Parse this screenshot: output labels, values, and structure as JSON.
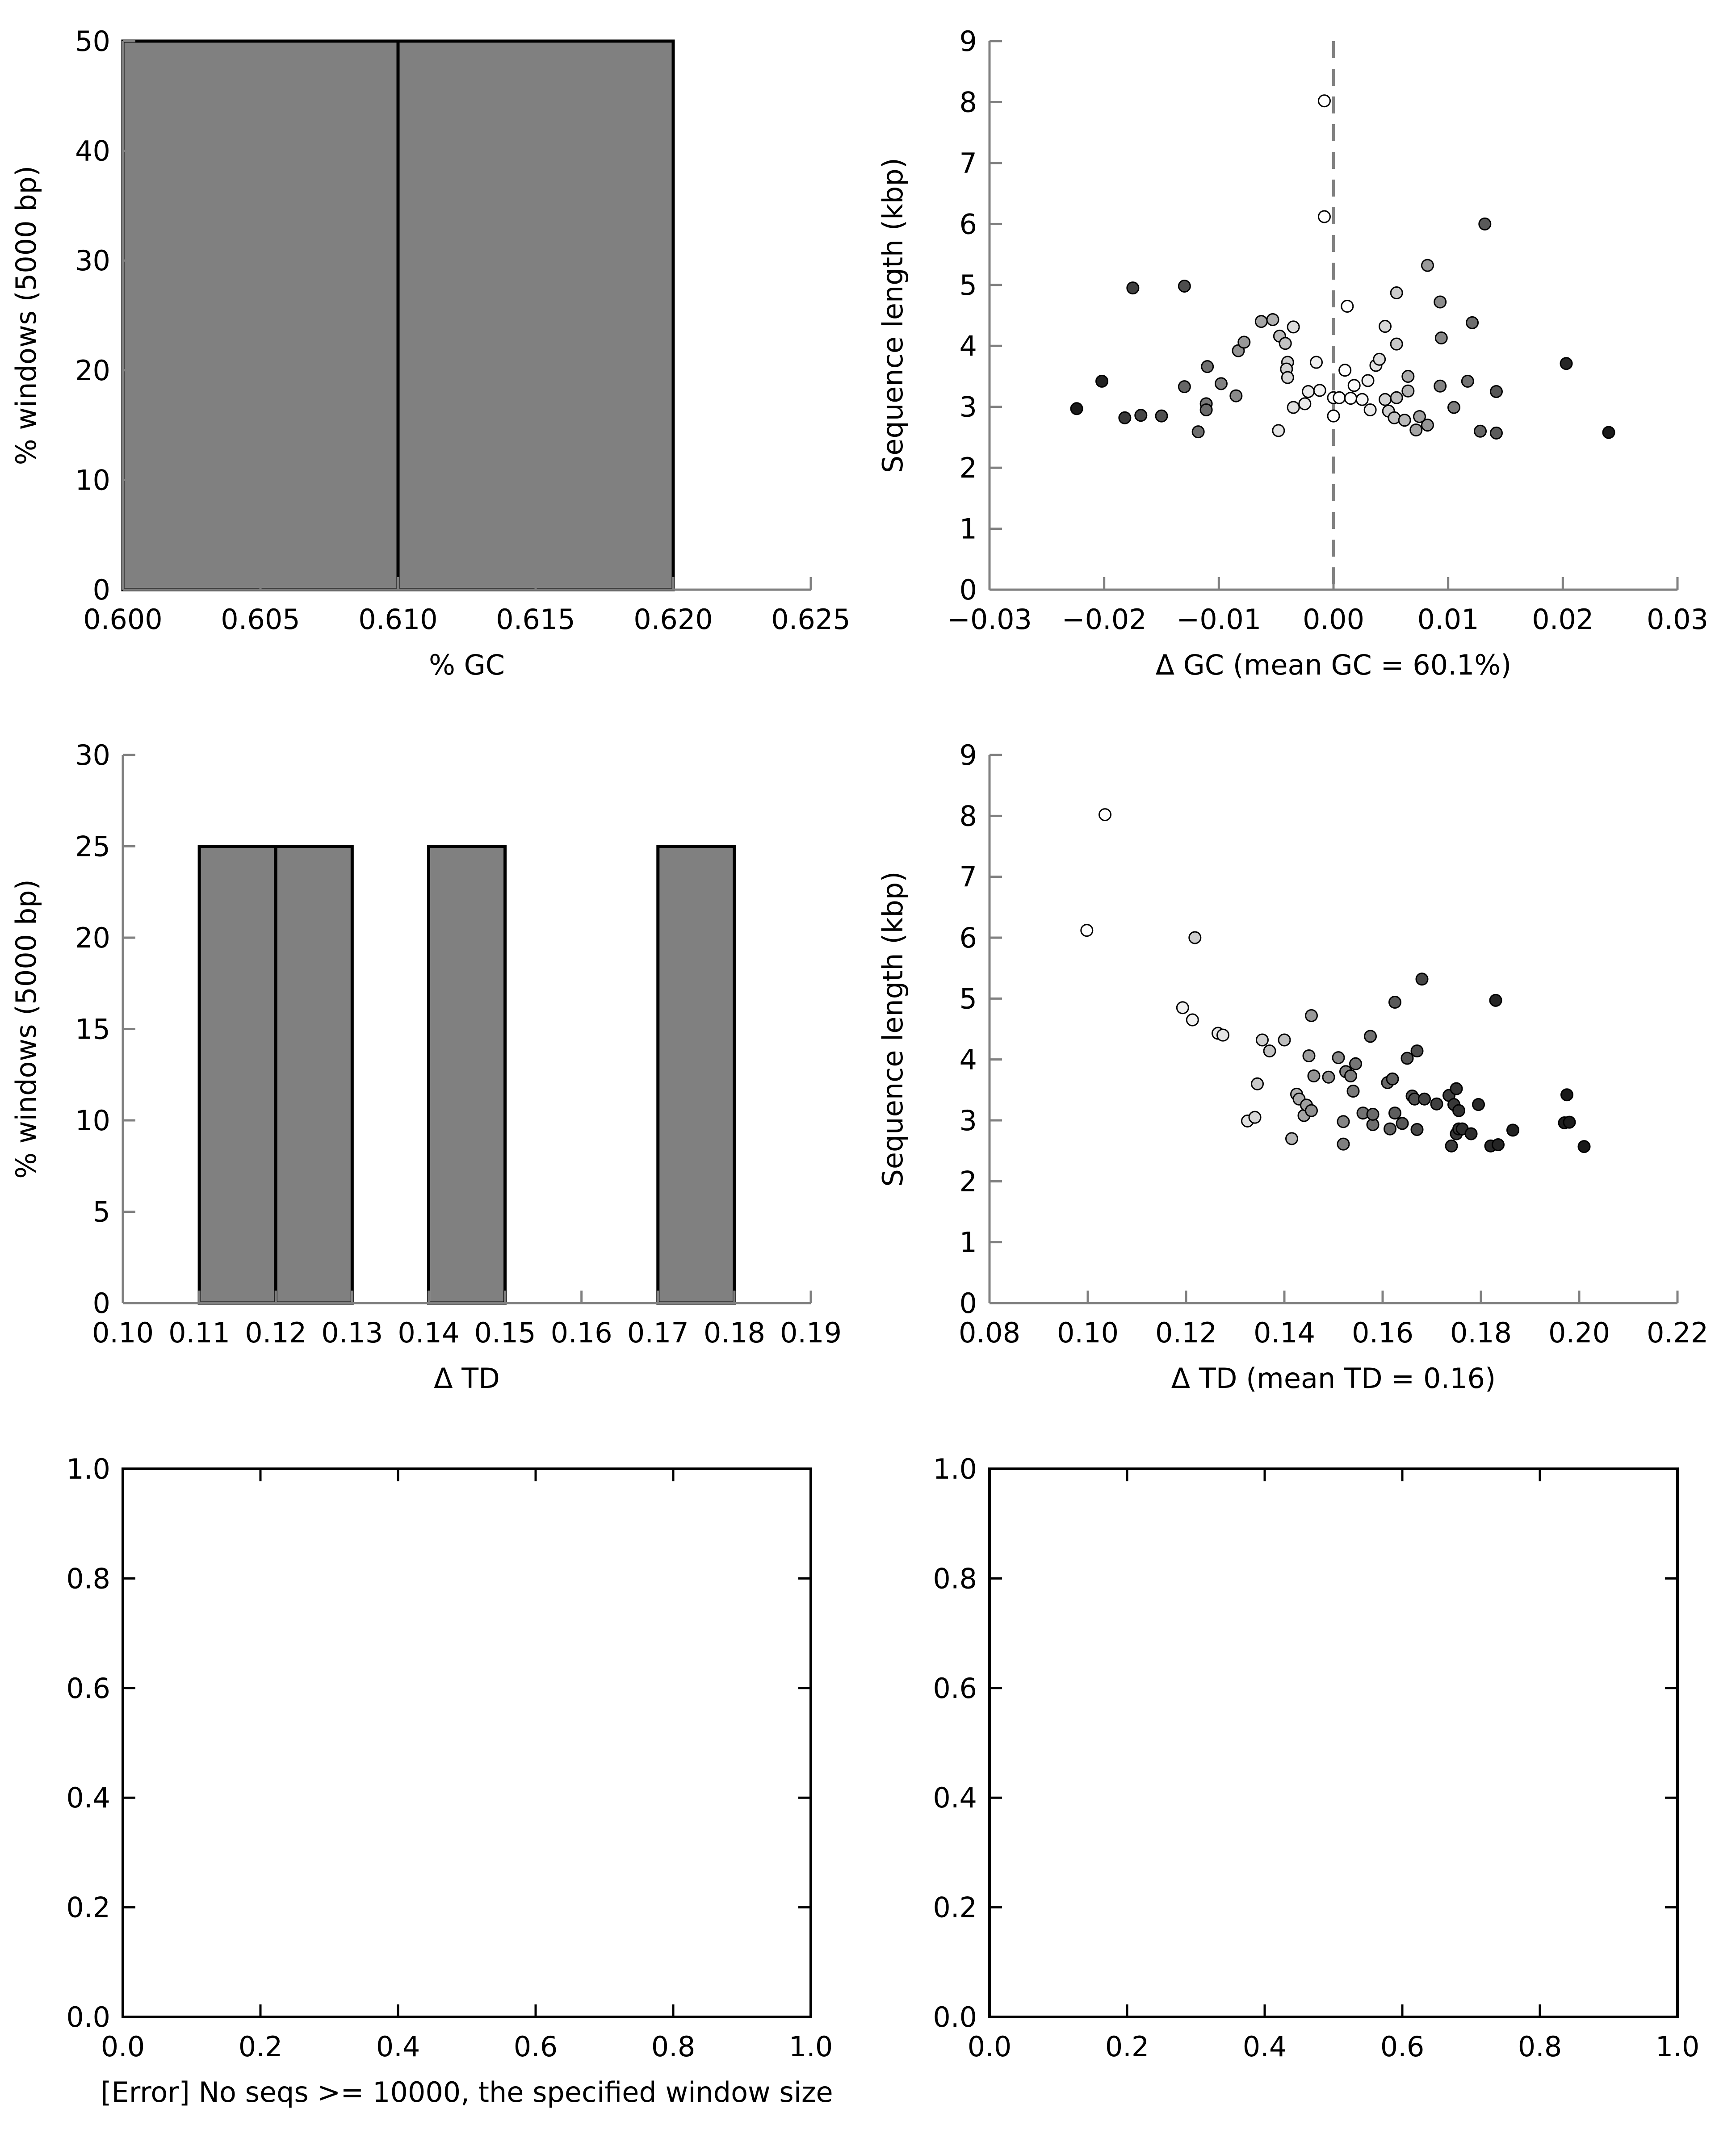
{
  "chart_data": [
    {
      "id": "gc-hist",
      "type": "bar",
      "subtype": "histogram",
      "xlabel": "% GC",
      "ylabel": "% windows (5000 bp)",
      "xlim": [
        0.6,
        0.625
      ],
      "ylim": [
        0,
        50
      ],
      "xticks": [
        "0.600",
        "0.605",
        "0.610",
        "0.615",
        "0.620",
        "0.625"
      ],
      "yticks": [
        "0",
        "10",
        "20",
        "30",
        "40",
        "50"
      ],
      "bins": [
        {
          "start": 0.6,
          "end": 0.61,
          "value": 50
        },
        {
          "start": 0.61,
          "end": 0.62,
          "value": 50
        }
      ],
      "bar_color": "#808080"
    },
    {
      "id": "gc-scatter",
      "type": "scatter",
      "xlabel": "Δ GC (mean GC = 60.1%)",
      "ylabel": "Sequence length (kbp)",
      "xlim": [
        -0.03,
        0.03
      ],
      "ylim": [
        0,
        9
      ],
      "xticks": [
        "−0.03",
        "−0.02",
        "−0.01",
        "0.00",
        "0.01",
        "0.02",
        "0.03"
      ],
      "yticks": [
        "0",
        "1",
        "2",
        "3",
        "4",
        "5",
        "6",
        "7",
        "8",
        "9"
      ],
      "reference_line": {
        "x": 0,
        "style": "dashed"
      },
      "points": [
        [
          -0.0224,
          2.97,
          "#1a1a1a"
        ],
        [
          -0.0202,
          3.42,
          "#222222"
        ],
        [
          -0.0175,
          4.95,
          "#404040"
        ],
        [
          -0.0182,
          2.82,
          "#3a3a3a"
        ],
        [
          -0.0168,
          2.86,
          "#474747"
        ],
        [
          -0.015,
          2.85,
          "#505050"
        ],
        [
          -0.013,
          4.98,
          "#4d4d4d"
        ],
        [
          -0.013,
          3.33,
          "#666666"
        ],
        [
          -0.0118,
          2.59,
          "#6e6e6e"
        ],
        [
          -0.011,
          3.66,
          "#707070"
        ],
        [
          -0.0111,
          3.05,
          "#777777"
        ],
        [
          -0.0111,
          2.95,
          "#6b6b6b"
        ],
        [
          -0.0098,
          3.38,
          "#808080"
        ],
        [
          -0.0085,
          3.18,
          "#8a8a8a"
        ],
        [
          -0.0083,
          3.92,
          "#959595"
        ],
        [
          -0.0078,
          4.06,
          "#999999"
        ],
        [
          -0.0063,
          4.4,
          "#a6a6a6"
        ],
        [
          -0.0053,
          4.43,
          "#b0b0b0"
        ],
        [
          -0.0047,
          4.16,
          "#bbbbbb"
        ],
        [
          -0.0042,
          4.04,
          "#c4c4c4"
        ],
        [
          -0.004,
          3.73,
          "#cccccc"
        ],
        [
          -0.0041,
          3.62,
          "#d0d0d0"
        ],
        [
          -0.004,
          3.48,
          "#d6d6d6"
        ],
        [
          -0.0035,
          4.31,
          "#dddddd"
        ],
        [
          -0.0035,
          2.99,
          "#e0e0e0"
        ],
        [
          -0.0048,
          2.61,
          "#e5e5e5"
        ],
        [
          -0.0025,
          3.05,
          "#e8e8e8"
        ],
        [
          -0.0022,
          3.25,
          "#eaeaea"
        ],
        [
          -0.0015,
          3.73,
          "#efefef"
        ],
        [
          -0.0012,
          3.27,
          "#f2f2f2"
        ],
        [
          -0.0008,
          8.02,
          "#ffffff"
        ],
        [
          -0.0008,
          6.12,
          "#ffffff"
        ],
        [
          0.0,
          3.15,
          "#ffffff"
        ],
        [
          0.0005,
          3.15,
          "#ffffff"
        ],
        [
          0.0,
          2.85,
          "#ffffff"
        ],
        [
          0.001,
          3.6,
          "#ffffff"
        ],
        [
          0.0012,
          4.65,
          "#ffffff"
        ],
        [
          0.0015,
          3.14,
          "#ffffff"
        ],
        [
          0.0018,
          3.35,
          "#fafafa"
        ],
        [
          0.0025,
          3.12,
          "#f5f5f5"
        ],
        [
          0.003,
          3.43,
          "#eeeeee"
        ],
        [
          0.0032,
          2.95,
          "#eaeaea"
        ],
        [
          0.0037,
          3.68,
          "#e4e4e4"
        ],
        [
          0.004,
          3.78,
          "#dcdcdc"
        ],
        [
          0.0045,
          4.32,
          "#d8d8d8"
        ],
        [
          0.0045,
          3.12,
          "#d3d3d3"
        ],
        [
          0.0048,
          2.93,
          "#d0d0d0"
        ],
        [
          0.0055,
          4.87,
          "#cccccc"
        ],
        [
          0.0055,
          4.03,
          "#c8c8c8"
        ],
        [
          0.0053,
          2.82,
          "#c2c2c2"
        ],
        [
          0.0055,
          3.15,
          "#bdbdbd"
        ],
        [
          0.0062,
          2.78,
          "#b8b8b8"
        ],
        [
          0.0065,
          3.26,
          "#b3b3b3"
        ],
        [
          0.0065,
          3.5,
          "#aaaaaa"
        ],
        [
          0.0072,
          2.62,
          "#a5a5a5"
        ],
        [
          0.0075,
          2.84,
          "#a0a0a0"
        ],
        [
          0.0082,
          5.32,
          "#9a9a9a"
        ],
        [
          0.0082,
          2.7,
          "#959595"
        ],
        [
          0.0093,
          4.72,
          "#8c8c8c"
        ],
        [
          0.0094,
          4.13,
          "#878787"
        ],
        [
          0.0093,
          3.34,
          "#828282"
        ],
        [
          0.0105,
          2.99,
          "#7d7d7d"
        ],
        [
          0.0117,
          3.42,
          "#737373"
        ],
        [
          0.0121,
          4.38,
          "#6e6e6e"
        ],
        [
          0.0128,
          2.6,
          "#666666"
        ],
        [
          0.0132,
          6.0,
          "#5a5a5a"
        ],
        [
          0.0142,
          3.25,
          "#575757"
        ],
        [
          0.0142,
          2.57,
          "#5c5c5c"
        ],
        [
          0.0203,
          3.71,
          "#262626"
        ],
        [
          0.024,
          2.58,
          "#1a1a1a"
        ]
      ]
    },
    {
      "id": "td-hist",
      "type": "bar",
      "subtype": "histogram",
      "xlabel": "Δ TD",
      "ylabel": "% windows (5000 bp)",
      "xlim": [
        0.1,
        0.19
      ],
      "ylim": [
        0,
        30
      ],
      "xticks": [
        "0.10",
        "0.11",
        "0.12",
        "0.13",
        "0.14",
        "0.15",
        "0.16",
        "0.17",
        "0.18",
        "0.19"
      ],
      "yticks": [
        "0",
        "5",
        "10",
        "15",
        "20",
        "25",
        "30"
      ],
      "bins": [
        {
          "start": 0.11,
          "end": 0.12,
          "value": 25
        },
        {
          "start": 0.12,
          "end": 0.13,
          "value": 25
        },
        {
          "start": 0.14,
          "end": 0.15,
          "value": 25
        },
        {
          "start": 0.17,
          "end": 0.18,
          "value": 25
        }
      ],
      "bar_color": "#808080"
    },
    {
      "id": "td-scatter",
      "type": "scatter",
      "xlabel": "Δ TD (mean TD = 0.16)",
      "ylabel": "Sequence length (kbp)",
      "xlim": [
        0.08,
        0.22
      ],
      "ylim": [
        0,
        9
      ],
      "xticks": [
        "0.08",
        "0.10",
        "0.12",
        "0.14",
        "0.16",
        "0.18",
        "0.20",
        "0.22"
      ],
      "yticks": [
        "0",
        "1",
        "2",
        "3",
        "4",
        "5",
        "6",
        "7",
        "8",
        "9"
      ],
      "points": [
        [
          0.1035,
          8.02,
          "#ffffff"
        ],
        [
          0.0998,
          6.12,
          "#ffffff"
        ],
        [
          0.1218,
          6.0,
          "#cfcfcf"
        ],
        [
          0.1193,
          4.85,
          "#f0f0f0"
        ],
        [
          0.1213,
          4.65,
          "#f2f2f2"
        ],
        [
          0.1265,
          4.43,
          "#eaeaea"
        ],
        [
          0.1275,
          4.4,
          "#e5e5e5"
        ],
        [
          0.1325,
          2.99,
          "#e0e0e0"
        ],
        [
          0.134,
          3.05,
          "#d8d8d8"
        ],
        [
          0.1355,
          4.32,
          "#d0d0d0"
        ],
        [
          0.1345,
          3.6,
          "#c8c8c8"
        ],
        [
          0.137,
          4.14,
          "#c2c2c2"
        ],
        [
          0.14,
          4.32,
          "#bdbdbd"
        ],
        [
          0.1415,
          2.7,
          "#b5b5b5"
        ],
        [
          0.1425,
          3.43,
          "#b0b0b0"
        ],
        [
          0.143,
          3.35,
          "#aaaaaa"
        ],
        [
          0.144,
          3.08,
          "#a5a5a5"
        ],
        [
          0.1445,
          3.25,
          "#a0a0a0"
        ],
        [
          0.145,
          4.06,
          "#9c9c9c"
        ],
        [
          0.1455,
          4.72,
          "#989898"
        ],
        [
          0.146,
          3.73,
          "#949494"
        ],
        [
          0.1455,
          3.16,
          "#909090"
        ],
        [
          0.149,
          3.71,
          "#8c8c8c"
        ],
        [
          0.151,
          4.03,
          "#888888"
        ],
        [
          0.152,
          2.98,
          "#858585"
        ],
        [
          0.1525,
          3.8,
          "#828282"
        ],
        [
          0.152,
          2.61,
          "#7f7f7f"
        ],
        [
          0.1535,
          3.73,
          "#7c7c7c"
        ],
        [
          0.154,
          3.48,
          "#797979"
        ],
        [
          0.1545,
          3.93,
          "#767676"
        ],
        [
          0.156,
          3.12,
          "#737373"
        ],
        [
          0.1575,
          4.38,
          "#707070"
        ],
        [
          0.158,
          2.93,
          "#6d6d6d"
        ],
        [
          0.158,
          3.1,
          "#6a6a6a"
        ],
        [
          0.161,
          3.62,
          "#676767"
        ],
        [
          0.1615,
          2.86,
          "#646464"
        ],
        [
          0.162,
          3.68,
          "#616161"
        ],
        [
          0.1625,
          3.12,
          "#5e5e5e"
        ],
        [
          0.1625,
          4.94,
          "#5b5b5b"
        ],
        [
          0.164,
          2.95,
          "#585858"
        ],
        [
          0.165,
          4.02,
          "#555555"
        ],
        [
          0.166,
          3.4,
          "#525252"
        ],
        [
          0.1665,
          3.35,
          "#4f4f4f"
        ],
        [
          0.167,
          4.14,
          "#4c4c4c"
        ],
        [
          0.167,
          2.85,
          "#494949"
        ],
        [
          0.168,
          5.32,
          "#464646"
        ],
        [
          0.1685,
          3.35,
          "#434343"
        ],
        [
          0.171,
          3.27,
          "#404040"
        ],
        [
          0.1735,
          3.41,
          "#3d3d3d"
        ],
        [
          0.174,
          2.58,
          "#3a3a3a"
        ],
        [
          0.1745,
          3.26,
          "#383838"
        ],
        [
          0.175,
          2.78,
          "#363636"
        ],
        [
          0.175,
          3.52,
          "#343434"
        ],
        [
          0.1755,
          2.86,
          "#323232"
        ],
        [
          0.1755,
          3.16,
          "#303030"
        ],
        [
          0.1762,
          2.86,
          "#2e2e2e"
        ],
        [
          0.178,
          2.78,
          "#2c2c2c"
        ],
        [
          0.1795,
          3.26,
          "#2a2a2a"
        ],
        [
          0.182,
          2.58,
          "#282828"
        ],
        [
          0.183,
          4.97,
          "#262626"
        ],
        [
          0.1835,
          2.6,
          "#242424"
        ],
        [
          0.1865,
          2.84,
          "#222222"
        ],
        [
          0.197,
          2.96,
          "#1e1e1e"
        ],
        [
          0.198,
          2.97,
          "#1c1c1c"
        ],
        [
          0.1975,
          3.42,
          "#1a1a1a"
        ],
        [
          0.201,
          2.57,
          "#181818"
        ]
      ]
    },
    {
      "id": "empty-left",
      "type": "scatter",
      "xlabel": "[Error] No seqs >= 10000, the specified window size",
      "ylabel": "",
      "xlim": [
        0,
        1
      ],
      "ylim": [
        0,
        1
      ],
      "xticks": [
        "0.0",
        "0.2",
        "0.4",
        "0.6",
        "0.8",
        "1.0"
      ],
      "yticks": [
        "0.0",
        "0.2",
        "0.4",
        "0.6",
        "0.8",
        "1.0"
      ],
      "points": []
    },
    {
      "id": "empty-right",
      "type": "scatter",
      "xlabel": "",
      "ylabel": "",
      "xlim": [
        0,
        1
      ],
      "ylim": [
        0,
        1
      ],
      "xticks": [
        "0.0",
        "0.2",
        "0.4",
        "0.6",
        "0.8",
        "1.0"
      ],
      "yticks": [
        "0.0",
        "0.2",
        "0.4",
        "0.6",
        "0.8",
        "1.0"
      ],
      "points": []
    }
  ]
}
